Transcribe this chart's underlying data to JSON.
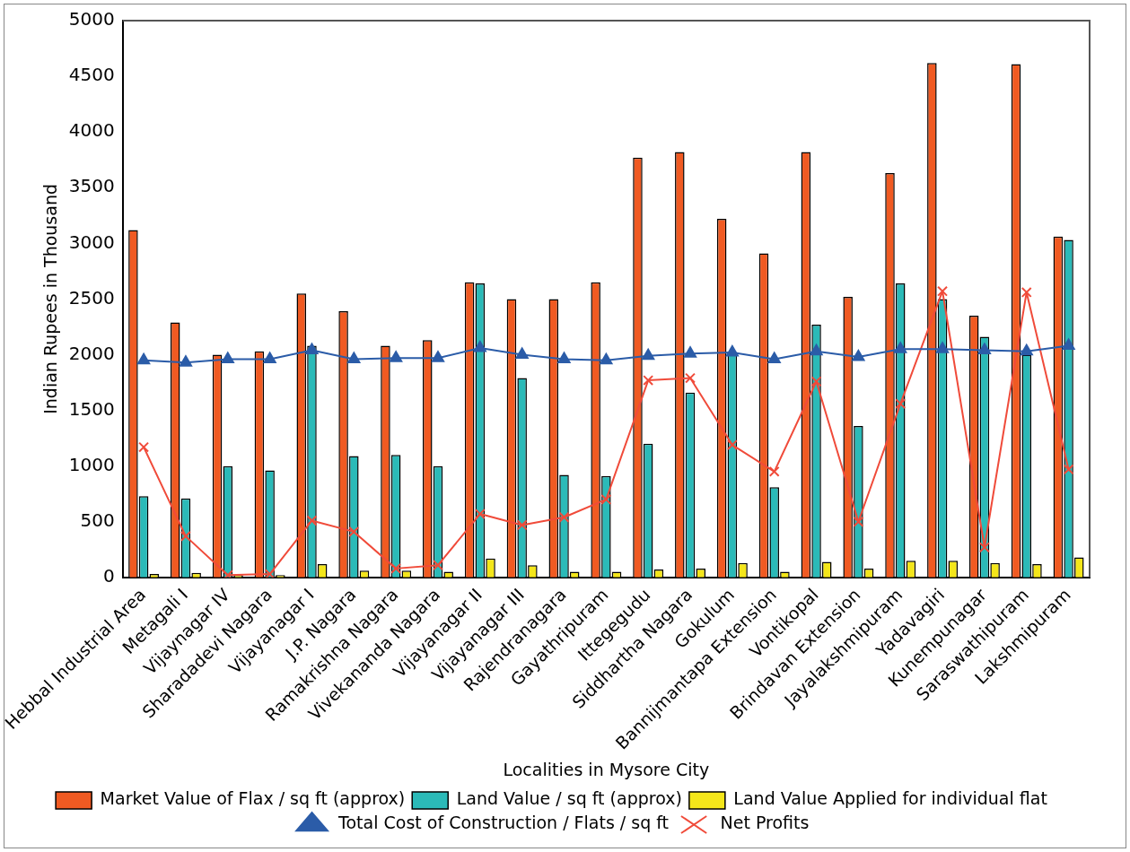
{
  "chart_data": {
    "type": "bar",
    "xlabel": "Localities in Mysore City",
    "ylabel": "Indian Rupees in Thousand",
    "categories": [
      "Hebbal Industrial Area",
      "Metagali I",
      "Vijaynagar IV",
      "Sharadadevi Nagara",
      "Vijayanagar I",
      "J.P. Nagara",
      "Ramakrishna Nagara",
      "Vivekananda Nagara",
      "Vijayanagar II",
      "Vijayanagar III",
      "Rajendranagara",
      "Gayathripuram",
      "Ittegegudu",
      "Siddhartha Nagara",
      "Gokulum",
      "Bannijmantapa Extension",
      "Vontikopal",
      "Brindavan Extension",
      "Jayalakshmipuram",
      "Yadavagiri",
      "Kunempunagar",
      "Saraswathipuram",
      "Lakshmipuram"
    ],
    "series": [
      {
        "name": "Market Value of Flax / sq ft (approx)",
        "color": "#f05a22",
        "values": [
          3120,
          2290,
          2000,
          2030,
          2550,
          2390,
          2080,
          2130,
          2650,
          2500,
          2500,
          2650,
          3770,
          3820,
          3220,
          2910,
          3820,
          2520,
          3630,
          4620,
          2350,
          4610,
          3060
        ]
      },
      {
        "name": "Land Value / sq ft (approx)",
        "color": "#2bbab8",
        "values": [
          730,
          710,
          1000,
          960,
          2080,
          1090,
          1100,
          1000,
          2640,
          1790,
          920,
          910,
          1200,
          1660,
          2000,
          810,
          2270,
          1360,
          2640,
          2500,
          2160,
          2000,
          3030
        ]
      },
      {
        "name": "Land Value Applied for individual flat",
        "color": "#f4e61a",
        "values": [
          30,
          40,
          20,
          20,
          120,
          60,
          60,
          50,
          170,
          110,
          50,
          50,
          70,
          80,
          130,
          50,
          140,
          80,
          150,
          150,
          130,
          120,
          180
        ]
      },
      {
        "name": "Total Cost of Construction / Flats / sq ft",
        "type": "line",
        "color": "#2b5ca8",
        "marker": "triangle",
        "values": [
          1950,
          1930,
          1960,
          1960,
          2040,
          1960,
          1970,
          1970,
          2060,
          2000,
          1960,
          1950,
          1990,
          2010,
          2020,
          1960,
          2030,
          1980,
          2050,
          2050,
          2040,
          2030,
          2080
        ]
      },
      {
        "name": "Net Profits",
        "type": "line",
        "color": "#f04b3a",
        "marker": "cross",
        "values": [
          1170,
          370,
          20,
          30,
          510,
          410,
          80,
          110,
          570,
          470,
          540,
          700,
          1770,
          1790,
          1190,
          950,
          1760,
          500,
          1560,
          2570,
          270,
          2560,
          970
        ]
      }
    ],
    "ylim": [
      0,
      5000
    ],
    "yticks": [
      0,
      500,
      1000,
      1500,
      2000,
      2500,
      3000,
      3500,
      4000,
      4500,
      5000
    ],
    "grid": false,
    "legend": "bottom"
  }
}
